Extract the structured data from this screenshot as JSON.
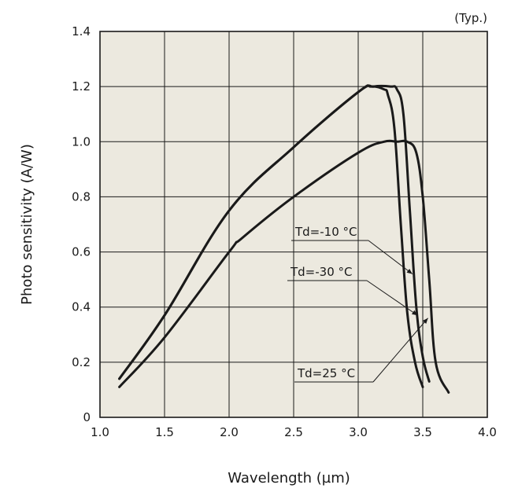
{
  "chart_data": {
    "type": "line",
    "note": "(Typ.)",
    "xlabel": "Wavelength (µm)",
    "ylabel": "Photo sensitivity (A/W)",
    "xlim": [
      1.0,
      4.0
    ],
    "ylim": [
      0,
      1.4
    ],
    "x_ticks": [
      "1.0",
      "1.5",
      "2.0",
      "2.5",
      "3.0",
      "3.5",
      "4.0"
    ],
    "y_ticks": [
      "0",
      "0.2",
      "0.4",
      "0.6",
      "0.8",
      "1.0",
      "1.2",
      "1.4"
    ],
    "grid": true,
    "plot_background": "#ece9df",
    "line_color": "#1a1a1a",
    "series": [
      {
        "name": "Td=-10 °C",
        "x": [
          1.15,
          1.5,
          2.0,
          2.5,
          3.0,
          3.12,
          3.25,
          3.3,
          3.35,
          3.4,
          3.45,
          3.5,
          3.55
        ],
        "y": [
          0.14,
          0.37,
          0.75,
          0.98,
          1.18,
          1.2,
          1.2,
          1.19,
          1.1,
          0.75,
          0.4,
          0.22,
          0.13
        ]
      },
      {
        "name": "Td=-30 °C",
        "x": [
          1.15,
          1.5,
          2.0,
          2.5,
          3.0,
          3.1,
          3.2,
          3.23,
          3.28,
          3.33,
          3.38,
          3.44,
          3.5
        ],
        "y": [
          0.14,
          0.37,
          0.75,
          0.98,
          1.18,
          1.2,
          1.19,
          1.17,
          1.05,
          0.7,
          0.38,
          0.2,
          0.11
        ]
      },
      {
        "name": "Td=25 °C",
        "x": [
          1.15,
          1.5,
          2.0,
          2.1,
          2.5,
          3.0,
          3.2,
          3.3,
          3.38,
          3.45,
          3.5,
          3.55,
          3.6,
          3.7
        ],
        "y": [
          0.11,
          0.29,
          0.6,
          0.65,
          0.8,
          0.96,
          1.0,
          1.0,
          1.0,
          0.96,
          0.8,
          0.5,
          0.2,
          0.09
        ]
      }
    ],
    "annotations": [
      {
        "series": "Td=-10 °C",
        "text": "Td=-10 °C",
        "at": [
          3.42,
          0.52
        ]
      },
      {
        "series": "Td=-30 °C",
        "text": "Td=-30 °C",
        "at": [
          3.46,
          0.37
        ]
      },
      {
        "series": "Td=25 °C",
        "text": "Td=25 °C",
        "at": [
          3.54,
          0.36
        ]
      }
    ]
  }
}
